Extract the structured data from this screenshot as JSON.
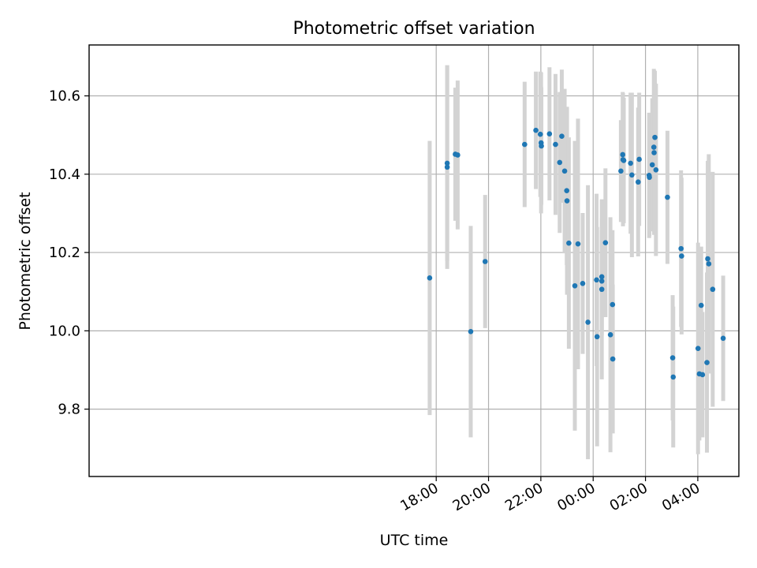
{
  "chart_data": {
    "type": "scatter",
    "title": "Photometric offset variation",
    "xlabel": "UTC time",
    "ylabel": "Photometric offset",
    "x_unit": "hours since 00:00 UTC",
    "xlim": [
      -19.27,
      5.57
    ],
    "ylim": [
      9.628,
      10.73
    ],
    "x_ticks": [
      {
        "value": -6,
        "label": "18:00"
      },
      {
        "value": -4,
        "label": "20:00"
      },
      {
        "value": -2,
        "label": "22:00"
      },
      {
        "value": 0,
        "label": "00:00"
      },
      {
        "value": 2,
        "label": "02:00"
      },
      {
        "value": 4,
        "label": "04:00"
      }
    ],
    "y_ticks": [
      9.8,
      10.0,
      10.2,
      10.4,
      10.6
    ],
    "grid": true,
    "colors": {
      "point": "#1f77b4",
      "errorbar": "#d3d3d3",
      "grid": "#b0b0b0"
    },
    "series": [
      {
        "points": [
          {
            "x": -6.25,
            "y": 10.135,
            "yerr": 0.35
          },
          {
            "x": -5.58,
            "y": 10.428,
            "yerr": 0.25
          },
          {
            "x": -5.58,
            "y": 10.418,
            "yerr": 0.26
          },
          {
            "x": -5.27,
            "y": 10.451,
            "yerr": 0.17
          },
          {
            "x": -5.18,
            "y": 10.449,
            "yerr": 0.19
          },
          {
            "x": -4.68,
            "y": 9.998,
            "yerr": 0.27
          },
          {
            "x": -4.13,
            "y": 10.177,
            "yerr": 0.17
          },
          {
            "x": -2.62,
            "y": 10.476,
            "yerr": 0.16
          },
          {
            "x": -2.19,
            "y": 10.512,
            "yerr": 0.15
          },
          {
            "x": -2.02,
            "y": 10.502,
            "yerr": 0.16
          },
          {
            "x": -1.99,
            "y": 10.48,
            "yerr": 0.18
          },
          {
            "x": -1.98,
            "y": 10.472,
            "yerr": 0.15
          },
          {
            "x": -1.67,
            "y": 10.503,
            "yerr": 0.17
          },
          {
            "x": -1.44,
            "y": 10.476,
            "yerr": 0.18
          },
          {
            "x": -1.28,
            "y": 10.43,
            "yerr": 0.18
          },
          {
            "x": -1.2,
            "y": 10.497,
            "yerr": 0.17
          },
          {
            "x": -1.09,
            "y": 10.408,
            "yerr": 0.21
          },
          {
            "x": -1.01,
            "y": 10.358,
            "yerr": 0.19
          },
          {
            "x": -1.0,
            "y": 10.332,
            "yerr": 0.24
          },
          {
            "x": -0.93,
            "y": 10.224,
            "yerr": 0.27
          },
          {
            "x": -0.7,
            "y": 10.115,
            "yerr": 0.37
          },
          {
            "x": -0.58,
            "y": 10.222,
            "yerr": 0.32
          },
          {
            "x": -0.4,
            "y": 10.121,
            "yerr": 0.18
          },
          {
            "x": -0.2,
            "y": 10.022,
            "yerr": 0.35
          },
          {
            "x": 0.13,
            "y": 10.13,
            "yerr": 0.22
          },
          {
            "x": 0.15,
            "y": 9.985,
            "yerr": 0.28
          },
          {
            "x": 0.33,
            "y": 10.138,
            "yerr": 0.15
          },
          {
            "x": 0.33,
            "y": 10.127,
            "yerr": 0.13
          },
          {
            "x": 0.33,
            "y": 10.106,
            "yerr": 0.23
          },
          {
            "x": 0.47,
            "y": 10.225,
            "yerr": 0.19
          },
          {
            "x": 0.66,
            "y": 9.99,
            "yerr": 0.3
          },
          {
            "x": 0.74,
            "y": 10.067,
            "yerr": 0.19
          },
          {
            "x": 0.75,
            "y": 9.928,
            "yerr": 0.19
          },
          {
            "x": 1.06,
            "y": 10.408,
            "yerr": 0.13
          },
          {
            "x": 1.13,
            "y": 10.45,
            "yerr": 0.16
          },
          {
            "x": 1.14,
            "y": 10.437,
            "yerr": 0.17
          },
          {
            "x": 1.17,
            "y": 10.435,
            "yerr": 0.16
          },
          {
            "x": 1.43,
            "y": 10.428,
            "yerr": 0.18
          },
          {
            "x": 1.48,
            "y": 10.398,
            "yerr": 0.21
          },
          {
            "x": 1.72,
            "y": 10.38,
            "yerr": 0.19
          },
          {
            "x": 1.76,
            "y": 10.438,
            "yerr": 0.17
          },
          {
            "x": 2.14,
            "y": 10.397,
            "yerr": 0.16
          },
          {
            "x": 2.15,
            "y": 10.392,
            "yerr": 0.15
          },
          {
            "x": 2.26,
            "y": 10.424,
            "yerr": 0.17
          },
          {
            "x": 2.32,
            "y": 10.469,
            "yerr": 0.2
          },
          {
            "x": 2.33,
            "y": 10.455,
            "yerr": 0.21
          },
          {
            "x": 2.36,
            "y": 10.494,
            "yerr": 0.17
          },
          {
            "x": 2.4,
            "y": 10.411,
            "yerr": 0.22
          },
          {
            "x": 2.84,
            "y": 10.341,
            "yerr": 0.17
          },
          {
            "x": 3.04,
            "y": 9.931,
            "yerr": 0.16
          },
          {
            "x": 3.06,
            "y": 9.882,
            "yerr": 0.18
          },
          {
            "x": 3.36,
            "y": 10.21,
            "yerr": 0.2
          },
          {
            "x": 3.38,
            "y": 10.191,
            "yerr": 0.2
          },
          {
            "x": 4.01,
            "y": 9.955,
            "yerr": 0.27
          },
          {
            "x": 4.06,
            "y": 9.89,
            "yerr": 0.17
          },
          {
            "x": 4.13,
            "y": 10.065,
            "yerr": 0.15
          },
          {
            "x": 4.18,
            "y": 9.888,
            "yerr": 0.16
          },
          {
            "x": 4.35,
            "y": 9.919,
            "yerr": 0.23
          },
          {
            "x": 4.38,
            "y": 10.184,
            "yerr": 0.25
          },
          {
            "x": 4.42,
            "y": 10.171,
            "yerr": 0.28
          },
          {
            "x": 4.57,
            "y": 10.106,
            "yerr": 0.3
          },
          {
            "x": 4.97,
            "y": 9.981,
            "yerr": 0.16
          }
        ]
      }
    ]
  }
}
